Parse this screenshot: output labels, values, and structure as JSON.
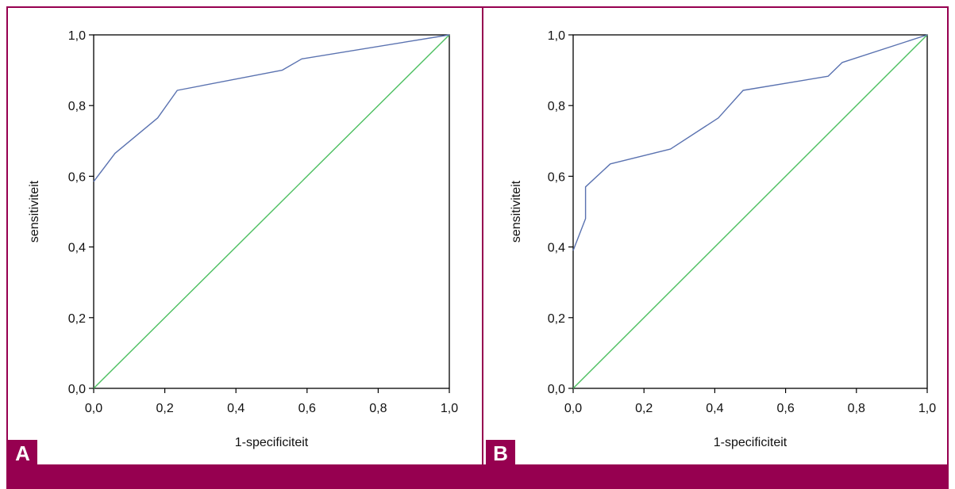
{
  "colors": {
    "frame": "#960050",
    "roc_curve": "#5a72b0",
    "reference_line": "#4cbf60",
    "axis": "#000000"
  },
  "panels": [
    {
      "letter": "A"
    },
    {
      "letter": "B"
    }
  ],
  "chart_data": [
    {
      "type": "line",
      "panel": "A",
      "xlabel": "1-specificiteit",
      "ylabel": "sensitiviteit",
      "xlim": [
        0,
        1
      ],
      "ylim": [
        0,
        1
      ],
      "x_ticks": [
        "0,0",
        "0,2",
        "0,4",
        "0,6",
        "0,8",
        "1,0"
      ],
      "y_ticks": [
        "0,0",
        "0,2",
        "0,4",
        "0,6",
        "0,8",
        "1,0"
      ],
      "grid": false,
      "series": [
        {
          "role": "roc",
          "color": "#5a72b0",
          "points": [
            [
              0,
              0.585
            ],
            [
              0.06,
              0.665
            ],
            [
              0.18,
              0.765
            ],
            [
              0.235,
              0.843
            ],
            [
              0.53,
              0.9
            ],
            [
              0.585,
              0.932
            ],
            [
              1.0,
              1.0
            ]
          ]
        },
        {
          "role": "diagonal",
          "color": "#4cbf60",
          "points": [
            [
              0,
              0
            ],
            [
              1,
              1
            ]
          ]
        }
      ]
    },
    {
      "type": "line",
      "panel": "B",
      "xlabel": "1-specificiteit",
      "ylabel": "sensitiviteit",
      "xlim": [
        0,
        1
      ],
      "ylim": [
        0,
        1
      ],
      "x_ticks": [
        "0,0",
        "0,2",
        "0,4",
        "0,6",
        "0,8",
        "1,0"
      ],
      "y_ticks": [
        "0,0",
        "0,2",
        "0,4",
        "0,6",
        "0,8",
        "1,0"
      ],
      "grid": false,
      "series": [
        {
          "role": "roc",
          "color": "#5a72b0",
          "points": [
            [
              0,
              0.39
            ],
            [
              0.035,
              0.48
            ],
            [
              0.035,
              0.57
            ],
            [
              0.105,
              0.635
            ],
            [
              0.275,
              0.677
            ],
            [
              0.41,
              0.765
            ],
            [
              0.48,
              0.843
            ],
            [
              0.72,
              0.883
            ],
            [
              0.76,
              0.922
            ],
            [
              1.0,
              1.0
            ]
          ]
        },
        {
          "role": "diagonal",
          "color": "#4cbf60",
          "points": [
            [
              0,
              0
            ],
            [
              1,
              1
            ]
          ]
        }
      ]
    }
  ]
}
